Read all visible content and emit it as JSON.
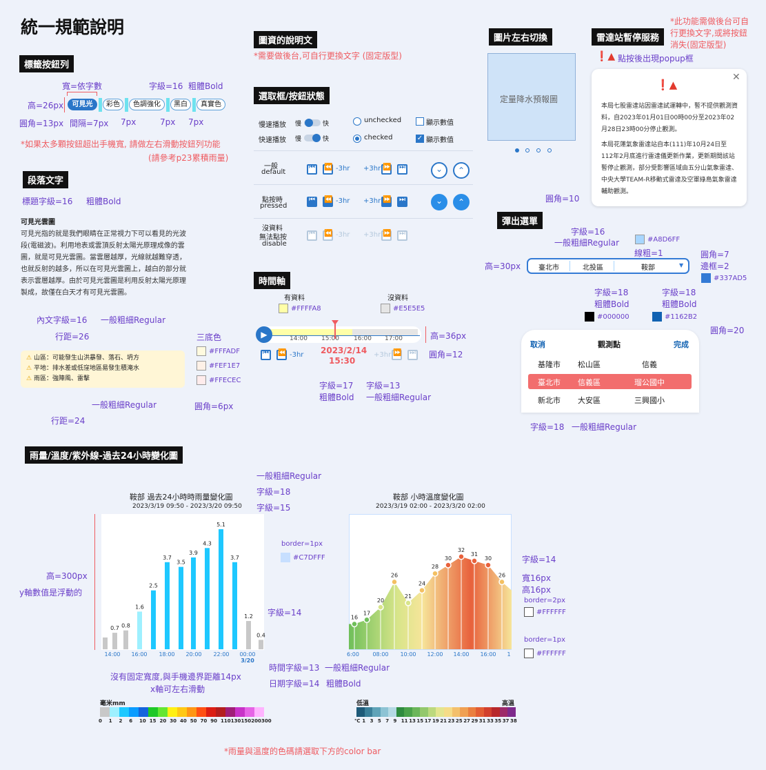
{
  "page": {
    "title": "統一規範說明"
  },
  "tags": {
    "header": "標籤按鈕列",
    "width_note": "寬=依字數",
    "font_note": "字級=16",
    "bold_note": "粗體Bold",
    "height_note": "高=26px",
    "chips": [
      "可見光",
      "彩色",
      "色調強化",
      "黑白",
      "真實色"
    ],
    "radius_note": "圓角=13px",
    "gap_note": "間隔=7px",
    "gap2": "7px",
    "gap3": "7px",
    "gap4": "7px",
    "warn1": "*如果太多顆按鈕超出手機寬, 請做左右滑動按鈕列功能",
    "warn2": "(請參考p23累積雨量)"
  },
  "para": {
    "header": "段落文字",
    "title_font": "標題字級=16",
    "title_bold": "粗體Bold",
    "heading": "可見光雲圖",
    "body": "可見光指的就是我們眼睛在正常視力下可以看見的光波段(電磁波)。利用地表或雲頂反射太陽光原理成像的雲圖，就是可見光雲圖。當雲層越厚，光線就越難穿透，也就反射的越多，所以在可見光雲圖上，越白的部分就表示雲層越厚。由於可見光雲圖是利用反射太陽光原理製成，故僅在白天才有可見光雲圖。",
    "body_font": "內文字級=16",
    "body_weight": "一般粗細Regular",
    "line_height": "行距=26",
    "bg_title": "三底色",
    "bg_colors": [
      "#FFFADF",
      "#FEF1E7",
      "#FFECEC"
    ],
    "alerts": [
      "山區：可能發生山洪暴發、落石、坍方",
      "平地：排水差或低窪地區易發生積淹水",
      "雨區：強陣風、雷擊"
    ],
    "alert_weight": "一般粗細Regular",
    "alert_radius": "圓角=6px",
    "alert_line": "行距=24"
  },
  "info": {
    "header": "圖資的說明文",
    "note": "*需要做後台,可自行更換文字 (固定版型)"
  },
  "states": {
    "header": "選取框/按鈕狀態",
    "row1": "慢速播放",
    "row2": "快速播放",
    "slow": "慢",
    "fast": "快",
    "unchecked": "unchecked",
    "checked": "checked",
    "show": "顯示數值",
    "show2": "顯示數值",
    "default_zh": "一般",
    "default_en": "default",
    "pressed_zh": "點按時",
    "pressed_en": "pressed",
    "disable_zh1": "沒資料",
    "disable_zh2": "無法點按",
    "disable_en": "disable",
    "minus": "-3hr",
    "plus": "+3hr"
  },
  "timeline": {
    "header": "時間軸",
    "has_data": "有資料",
    "no_data": "沒資料",
    "color_has": "#FFFFA8",
    "color_no": "#E5E5E5",
    "ticks": [
      "14:00",
      "15:00",
      "16:00",
      "17:00"
    ],
    "height_note": "高=36px",
    "radius_note": "圓角=12",
    "date": "2023/2/14",
    "time": "15:30",
    "minus": "-3hr",
    "plus": "+3hr",
    "font17": "字級=17",
    "bold": "粗體Bold",
    "font13": "字級=13",
    "regular": "一般粗細Regular"
  },
  "slider": {
    "header": "圖片左右切換",
    "placeholder": "定量降水預報圖"
  },
  "radar": {
    "header": "雷達站暫停服務",
    "note1": "*此功能需做後台可自",
    "note2": "行更換文字,或將按鈕",
    "note3": "消失(固定版型)",
    "popup_hint": "點按後出現popup框",
    "p1": "本局七股雷達站因雷達試運轉中，暫不提供觀測資料，自2023年01月01日00時00分至2023年02月28日23時00分停止觀測。",
    "p2": "本局花蓮氣象雷達站自本(111)年10月24日至112年2月底進行雷達儀更新作業，更新期間該站暫停止觀測，部分受影響區域由五分山氣象雷達、中央大學TEAM-R移動式雷達及空軍綠島氣象雷達輔助觀測。",
    "radius": "圓角=10"
  },
  "dropdown": {
    "header": "彈出選單",
    "font": "字級=16",
    "weight": "一般粗細Regular",
    "color1": "#A8D6FF",
    "line": "線粗=1",
    "radius": "圓角=7",
    "border": "邊框=2",
    "color2": "#337AD5",
    "height": "高=30px",
    "values": [
      "臺北市",
      "北投區",
      "鞍部"
    ],
    "font18a": "字級=18",
    "bolda": "粗體Bold",
    "black": "#000000",
    "font18b": "字級=18",
    "boldb": "粗體Bold",
    "blue": "#1162B2",
    "radius20": "圓角=20",
    "cancel": "取消",
    "title": "觀測點",
    "done": "完成",
    "rows": [
      [
        "基隆市",
        "松山區",
        "信義"
      ],
      [
        "臺北市",
        "信義區",
        "瑠公國中"
      ],
      [
        "新北市",
        "大安區",
        "三興國小"
      ]
    ],
    "bottom_font": "字級=18",
    "bottom_weight": "一般粗細Regular"
  },
  "charts_header": "雨量/溫度/紫外線-過去24小時變化圖",
  "rain": {
    "title": "鞍部 過去24小時時雨量變化圖",
    "range": "2023/3/19 09:50 - 2023/3/20 09:50",
    "reg": "一般粗細Regular",
    "f18": "字級=18",
    "f15": "字級=15",
    "height": "高=300px",
    "float": "y軸數值是浮動的",
    "f14": "字級=14",
    "note1": "沒有固定寬度,與手機邊界距離14px",
    "note2": "x軸可左右滑動",
    "time_font": "時間字級=13",
    "time_weight": "一般粗細Regular",
    "date_font": "日期字級=14",
    "date_weight": "粗體Bold",
    "date_label": "3/20",
    "unit": "毫米mm",
    "scale": [
      "0",
      "1",
      "2",
      "6",
      "10",
      "15",
      "20",
      "30",
      "40",
      "50",
      "70",
      "90",
      "110",
      "130",
      "150",
      "200",
      "300"
    ],
    "scale_colors": [
      "#c8c8c8",
      "#9ef0ff",
      "#1ec8ff",
      "#0a9cff",
      "#1464dc",
      "#1ec828",
      "#64e632",
      "#fff014",
      "#ffc814",
      "#ff9614",
      "#ff5014",
      "#dc1e14",
      "#b41e1e",
      "#a01e78",
      "#c832c8",
      "#e664e6",
      "#ffb4ff"
    ]
  },
  "temp": {
    "title": "鞍部 小時溫度變化圖",
    "range": "2023/3/19 02:00 - 2023/3/20 02:00",
    "border1": "border=1px",
    "border1_color": "#C7DFFF",
    "f14": "字級=14",
    "w16": "寬16px",
    "h16": "高16px",
    "border2": "border=2px",
    "white1": "#FFFFFF",
    "border3": "border=1px",
    "white2": "#FFFFFF",
    "low": "低溫",
    "high": "高溫",
    "scale": [
      "℃",
      "1",
      "3",
      "5",
      "7",
      "9",
      "11",
      "13",
      "15",
      "17",
      "19",
      "21",
      "23",
      "25",
      "27",
      "29",
      "31",
      "33",
      "35",
      "37",
      "38"
    ]
  },
  "footer": "*雨量與溫度的色碼請選取下方的color bar",
  "chart_data": [
    {
      "type": "bar",
      "title": "鞍部 過去24小時時雨量變化圖",
      "subtitle": "2023/3/19 09:50 - 2023/3/20 09:50",
      "x_ticks": [
        "14:00",
        "16:00",
        "18:00",
        "20:00",
        "22:00",
        "00:00",
        "3/20"
      ],
      "series": [
        {
          "values": [
            0.5,
            0.7,
            0.8,
            0.0,
            1.6,
            2.5,
            3.7,
            3.5,
            3.9,
            4.3,
            5.1,
            0.0,
            3.7,
            1.2,
            0.4
          ]
        }
      ],
      "value_labels": [
        "",
        "0.7",
        "0.8",
        "",
        "1.6",
        "2.5",
        "3.7",
        "3.5",
        "3.9",
        "4.3",
        "5.1",
        "",
        "3.7",
        "1.2",
        "0.4"
      ]
    },
    {
      "type": "area",
      "title": "鞍部 小時溫度變化圖",
      "subtitle": "2023/3/19 02:00 - 2023/3/20 02:00",
      "x_ticks": [
        "6:00",
        "08:00",
        "10:00",
        "12:00",
        "14:00",
        "16:00",
        "1"
      ],
      "series": [
        {
          "values": [
            16,
            17,
            20,
            26,
            21,
            24,
            28,
            30,
            32,
            31,
            30,
            26
          ]
        }
      ]
    }
  ]
}
